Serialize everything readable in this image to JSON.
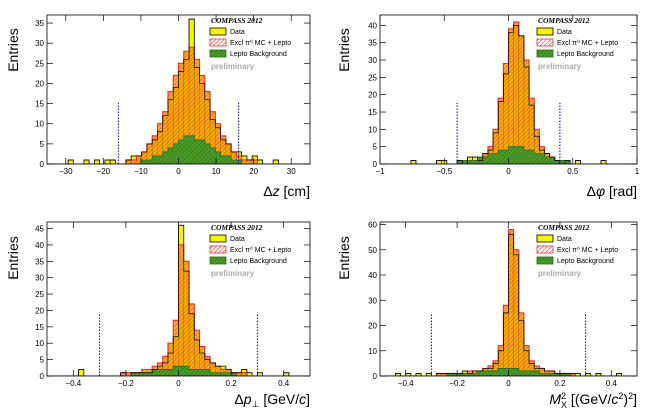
{
  "colors": {
    "data_fill": "#f5f500",
    "mc_hatch": "#e63030",
    "mc_line": "#e63030",
    "lepto_fill": "#3a8a1e",
    "lepto_line": "#2a6a12",
    "orange_fill": "#f5a300",
    "cut_line": "#0000cc"
  },
  "chart_data": [
    {
      "type": "bar",
      "xlabel": "Δz [cm]",
      "ylabel": "Entries",
      "experiment": "COMPASS 2012",
      "preliminary": "preliminary",
      "legend": [
        "Data",
        "Excl π⁰ MC + Lepto",
        "Lepto Background"
      ],
      "legend_position": "top-right",
      "xlim": [
        -35,
        35
      ],
      "ylim": [
        0,
        37
      ],
      "xticks": [
        -30,
        -20,
        -10,
        0,
        10,
        20,
        30
      ],
      "yticks": [
        0,
        5,
        10,
        15,
        20,
        25,
        30,
        35
      ],
      "cuts": [
        -16,
        16
      ],
      "bin_start": -35,
      "bin_width": 1.4,
      "data": [
        0,
        0,
        0,
        0,
        1,
        0,
        0,
        1,
        0,
        1,
        0,
        1,
        1,
        0,
        0,
        1,
        2,
        2,
        3,
        5,
        6,
        8,
        12,
        16,
        19,
        23,
        26,
        36,
        24,
        20,
        16,
        11,
        9,
        6,
        5,
        3,
        3,
        2,
        1,
        2,
        1,
        0,
        0,
        1,
        0,
        0,
        0,
        0,
        0,
        0
      ],
      "mc": [
        0,
        0,
        0,
        0,
        0,
        0,
        0,
        0,
        0,
        0,
        0,
        0,
        0,
        0,
        0,
        1,
        1,
        2,
        3,
        5,
        7,
        10,
        13,
        18,
        22,
        25,
        28,
        29,
        26,
        22,
        18,
        13,
        10,
        7,
        5,
        3,
        2,
        1,
        1,
        1,
        0,
        0,
        0,
        0,
        0,
        0,
        0,
        0,
        0,
        0
      ],
      "lepto": [
        0,
        0,
        0,
        0,
        0,
        0,
        0,
        0,
        0,
        0,
        0,
        0,
        0,
        0,
        0,
        0,
        0,
        0,
        1,
        1,
        2,
        2,
        3,
        4,
        5,
        6,
        7,
        7,
        6,
        6,
        5,
        4,
        3,
        2,
        2,
        1,
        1,
        0,
        0,
        0,
        0,
        0,
        0,
        0,
        0,
        0,
        0,
        0,
        0,
        0
      ]
    },
    {
      "type": "bar",
      "xlabel": "Δφ [rad]",
      "ylabel": "Entries",
      "experiment": "COMPASS 2012",
      "preliminary": "preliminary",
      "legend": [
        "Data",
        "Excl π⁰ MC + Lepto",
        "Lepto Background"
      ],
      "legend_position": "top-right",
      "xlim": [
        -1,
        1
      ],
      "ylim": [
        0,
        43
      ],
      "xticks": [
        -1,
        -0.5,
        0,
        0.5,
        1
      ],
      "yticks": [
        0,
        5,
        10,
        15,
        20,
        25,
        30,
        35,
        40
      ],
      "cuts": [
        -0.4,
        0.4
      ],
      "bin_start": -1,
      "bin_width": 0.04,
      "data": [
        0,
        0,
        0,
        0,
        0,
        0,
        1,
        0,
        0,
        0,
        0,
        1,
        1,
        0,
        0,
        1,
        0,
        2,
        2,
        1,
        3,
        4,
        9,
        18,
        26,
        38,
        40,
        37,
        28,
        17,
        8,
        4,
        3,
        2,
        1,
        0,
        1,
        0,
        1,
        0,
        0,
        0,
        0,
        1,
        0,
        0,
        0,
        0,
        0,
        0
      ],
      "mc": [
        0,
        0,
        0,
        0,
        0,
        0,
        0,
        0,
        0,
        0,
        0,
        0,
        0,
        0,
        0,
        0,
        1,
        1,
        1,
        2,
        3,
        5,
        10,
        19,
        29,
        39,
        41,
        37,
        30,
        19,
        10,
        5,
        3,
        2,
        1,
        1,
        0,
        0,
        0,
        0,
        0,
        0,
        0,
        0,
        0,
        0,
        0,
        0,
        0,
        0
      ],
      "lepto": [
        0,
        0,
        0,
        0,
        0,
        0,
        0,
        0,
        0,
        0,
        0,
        0,
        0,
        0,
        0,
        1,
        1,
        1,
        1,
        2,
        2,
        3,
        3,
        4,
        4,
        5,
        5,
        5,
        4,
        4,
        3,
        3,
        2,
        2,
        1,
        1,
        1,
        0,
        0,
        0,
        0,
        0,
        0,
        0,
        0,
        0,
        0,
        0,
        0,
        0
      ]
    },
    {
      "type": "bar",
      "xlabel": "Δp⊥ [GeV/c]",
      "ylabel": "Entries",
      "experiment": "COMPASS 2012",
      "preliminary": "preliminary",
      "legend": [
        "Data",
        "Excl π⁰ MC + Lepto",
        "Lepto Background"
      ],
      "legend_position": "top-right",
      "xlim": [
        -0.5,
        0.5
      ],
      "ylim": [
        0,
        47
      ],
      "xticks": [
        -0.4,
        -0.2,
        0,
        0.2,
        0.4
      ],
      "yticks": [
        0,
        5,
        10,
        15,
        20,
        25,
        30,
        35,
        40,
        45
      ],
      "cuts": [
        -0.3,
        0.3
      ],
      "bin_start": -0.5,
      "bin_width": 0.02,
      "data": [
        0,
        0,
        0,
        0,
        0,
        0,
        2,
        0,
        0,
        0,
        0,
        0,
        0,
        0,
        1,
        0,
        1,
        1,
        1,
        1,
        2,
        3,
        4,
        7,
        12,
        46,
        32,
        19,
        11,
        7,
        5,
        4,
        3,
        3,
        2,
        1,
        1,
        2,
        1,
        0,
        1,
        0,
        0,
        0,
        0,
        1,
        0,
        0,
        0,
        0
      ],
      "mc": [
        0,
        0,
        0,
        0,
        0,
        0,
        0,
        0,
        0,
        0,
        0,
        0,
        0,
        0,
        1,
        1,
        1,
        1,
        2,
        2,
        3,
        4,
        6,
        10,
        17,
        40,
        35,
        22,
        14,
        9,
        6,
        4,
        3,
        2,
        2,
        1,
        1,
        1,
        0,
        0,
        0,
        0,
        0,
        0,
        0,
        0,
        0,
        0,
        0,
        0
      ],
      "lepto": [
        0,
        0,
        0,
        0,
        0,
        0,
        0,
        0,
        0,
        0,
        0,
        0,
        0,
        0,
        0,
        0,
        1,
        1,
        1,
        1,
        2,
        2,
        2,
        2,
        3,
        3,
        3,
        2,
        2,
        2,
        2,
        1,
        1,
        1,
        1,
        1,
        0,
        0,
        0,
        0,
        0,
        0,
        0,
        0,
        0,
        0,
        0,
        0,
        0,
        0
      ]
    },
    {
      "type": "bar",
      "xlabel": "M²X [(GeV/c²)²]",
      "ylabel": "Entries",
      "experiment": "COMPASS 2012",
      "preliminary": "preliminary",
      "legend": [
        "Data",
        "Excl π⁰ MC + Lepto",
        "Lepto Background"
      ],
      "legend_position": "top-right",
      "xlim": [
        -0.5,
        0.5
      ],
      "ylim": [
        0,
        61
      ],
      "xticks": [
        -0.4,
        -0.2,
        0,
        0.2,
        0.4
      ],
      "yticks": [
        0,
        10,
        20,
        30,
        40,
        50,
        60
      ],
      "cuts": [
        -0.3,
        0.3
      ],
      "bin_start": -0.5,
      "bin_width": 0.02,
      "data": [
        0,
        0,
        0,
        1,
        0,
        1,
        0,
        1,
        0,
        1,
        0,
        1,
        1,
        1,
        1,
        1,
        2,
        1,
        2,
        2,
        3,
        3,
        5,
        10,
        25,
        56,
        48,
        22,
        10,
        5,
        3,
        3,
        2,
        2,
        1,
        1,
        1,
        1,
        1,
        0,
        1,
        0,
        1,
        0,
        0,
        0,
        1,
        0,
        0,
        0
      ],
      "mc": [
        0,
        0,
        0,
        0,
        0,
        0,
        0,
        0,
        0,
        0,
        0,
        1,
        1,
        1,
        1,
        1,
        1,
        2,
        2,
        2,
        3,
        4,
        6,
        12,
        28,
        58,
        50,
        25,
        12,
        6,
        4,
        3,
        2,
        2,
        1,
        1,
        1,
        1,
        0,
        0,
        0,
        0,
        0,
        0,
        0,
        0,
        0,
        0,
        0,
        0
      ],
      "lepto": [
        0,
        0,
        0,
        0,
        0,
        0,
        0,
        0,
        0,
        0,
        0,
        0,
        0,
        1,
        1,
        1,
        1,
        1,
        1,
        2,
        2,
        2,
        2,
        3,
        3,
        3,
        3,
        2,
        2,
        2,
        2,
        1,
        1,
        1,
        1,
        1,
        1,
        0,
        0,
        0,
        0,
        0,
        0,
        0,
        0,
        0,
        0,
        0,
        0,
        0
      ]
    }
  ]
}
